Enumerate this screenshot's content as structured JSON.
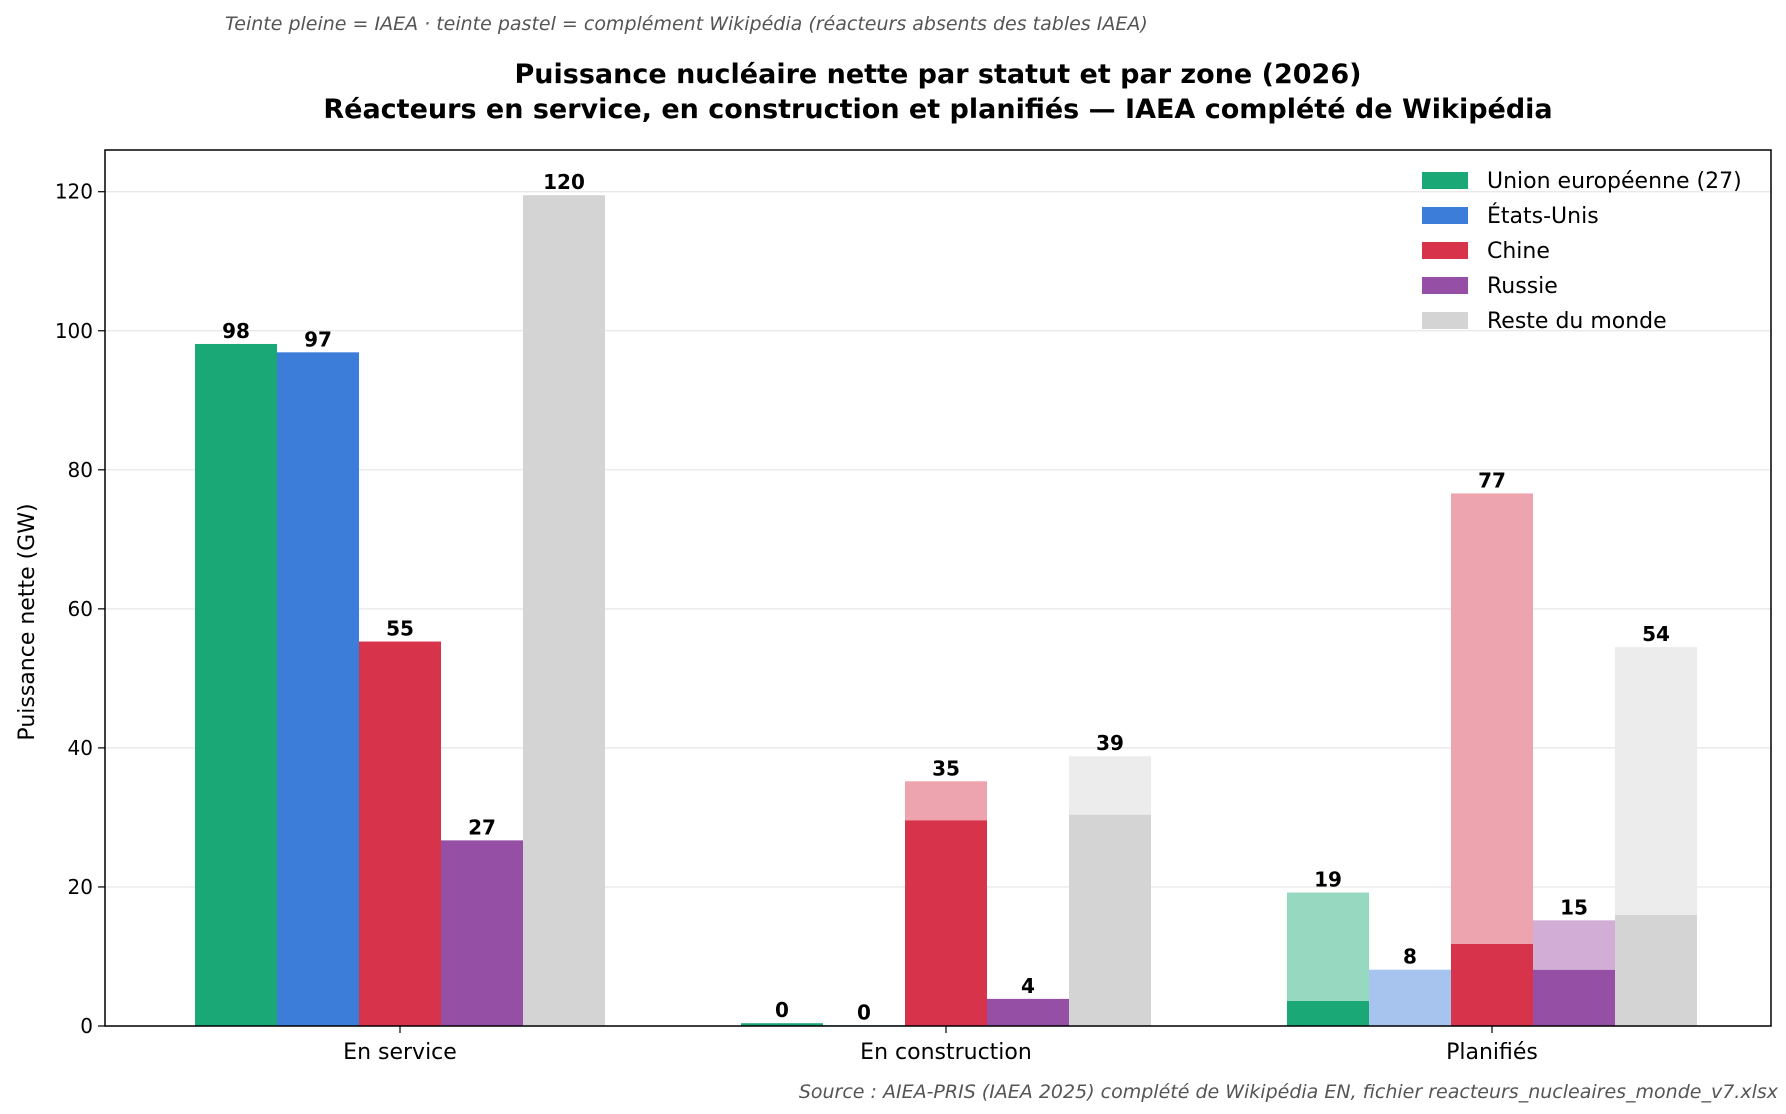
{
  "note": "Teinte pleine = IAEA · teinte pastel = complément Wikipédia (réacteurs absents des tables IAEA)",
  "source": "Source : AIEA-PRIS (IAEA 2025) complété de Wikipédia EN, fichier reacteurs_nucleaires_monde_v7.xlsx",
  "chart_data": {
    "type": "bar",
    "stacked_within_bar": true,
    "title": "Puissance nucléaire nette par statut et par zone (2026)",
    "subtitle": "Réacteurs en service, en construction et planifiés — IAEA complété de Wikipédia",
    "xlabel": "",
    "ylabel": "Puissance nette (GW)",
    "ylim": [
      0,
      126
    ],
    "yticks": [
      0,
      20,
      40,
      60,
      80,
      100,
      120
    ],
    "grid": "horizontal",
    "legend_position": "top-right",
    "categories": [
      "En service",
      "En construction",
      "Planifiés"
    ],
    "series": [
      {
        "name": "Union européenne (27)",
        "color": "#1aa877",
        "pastel": "#97d8c1",
        "iaea": [
          98.1,
          0.4,
          3.6
        ],
        "wiki": [
          0,
          0,
          15.6
        ],
        "labels": [
          "98",
          "0",
          "19"
        ]
      },
      {
        "name": "États-Unis",
        "color": "#3c7dd9",
        "pastel": "#a7c4ef",
        "iaea": [
          96.9,
          0.1,
          0
        ],
        "wiki": [
          0,
          0,
          8.1
        ],
        "labels": [
          "97",
          "0",
          "8"
        ]
      },
      {
        "name": "Chine",
        "color": "#d7334a",
        "pastel": "#eda4ae",
        "iaea": [
          55.3,
          29.6,
          11.8
        ],
        "wiki": [
          0,
          5.6,
          64.8
        ],
        "labels": [
          "55",
          "35",
          "77"
        ]
      },
      {
        "name": "Russie",
        "color": "#954fa5",
        "pastel": "#d2aed7",
        "iaea": [
          26.7,
          3.9,
          8.1
        ],
        "wiki": [
          0,
          0,
          7.1
        ],
        "labels": [
          "27",
          "4",
          "15"
        ]
      },
      {
        "name": "Reste du monde",
        "color": "#d4d4d4",
        "pastel": "#ececec",
        "iaea": [
          119.5,
          30.4,
          16.0
        ],
        "wiki": [
          0,
          8.4,
          38.5
        ],
        "labels": [
          "120",
          "39",
          "54"
        ]
      }
    ]
  }
}
